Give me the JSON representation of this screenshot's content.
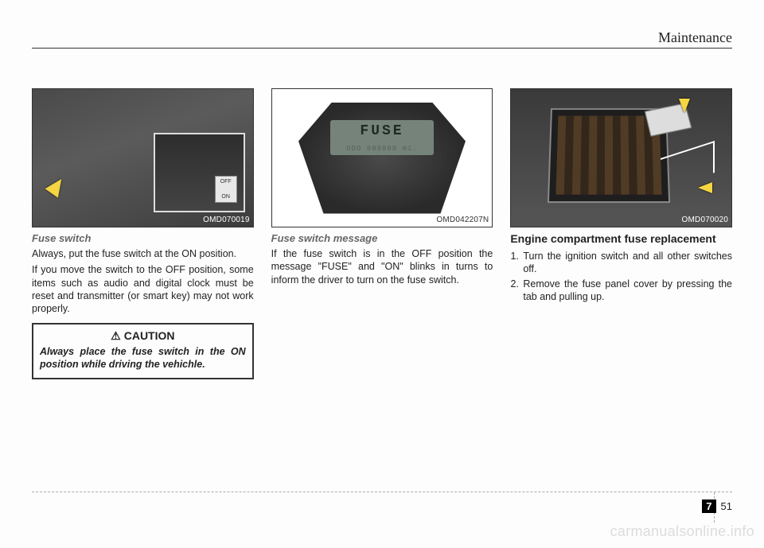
{
  "header": {
    "section_title": "Maintenance"
  },
  "col1": {
    "fig_label": "OMD070019",
    "subhead": "Fuse switch",
    "p1": "Always, put the fuse switch at the ON position.",
    "p2": "If you move the switch to the OFF position, some items  such as audio and digital clock must be reset and transmitter (or smart key) may not work properly.",
    "caution_title": "CAUTION",
    "caution_text": "Always place the fuse switch in the ON position while driving the vehichle.",
    "switch_off": "OFF",
    "switch_on": "ON"
  },
  "col2": {
    "fig_label": "OMD042207N",
    "subhead": "Fuse switch message",
    "p1": "If the fuse switch is in the OFF position the message \"FUSE\" and \"ON\" blinks in turns to inform the driver to turn on the fuse switch.",
    "lcd_fuse": "FUSE",
    "lcd_odo": "ODO 888888 mi."
  },
  "col3": {
    "fig_label": "OMD070020",
    "subhead": "Engine compartment fuse replacement",
    "step1": "Turn the ignition switch and all other switches off.",
    "step2": "Remove the fuse panel cover by pressing the tab and pulling up."
  },
  "footer": {
    "chapter": "7",
    "page": "51",
    "watermark": "carmanualsonline.info"
  }
}
